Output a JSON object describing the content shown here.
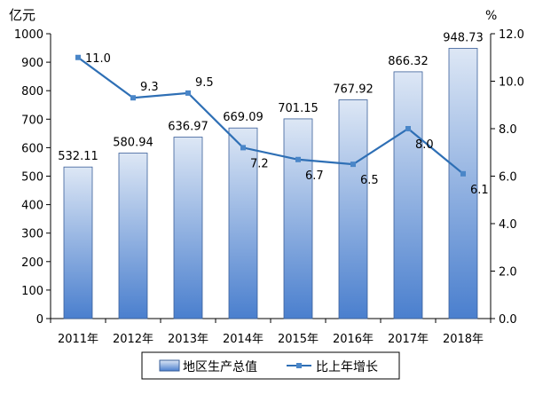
{
  "chart_data": {
    "type": "bar",
    "categories": [
      "2011年",
      "2012年",
      "2013年",
      "2014年",
      "2015年",
      "2016年",
      "2017年",
      "2018年"
    ],
    "series": [
      {
        "name": "地区生产总值",
        "type": "bar",
        "axis": "left",
        "values": [
          532.11,
          580.94,
          636.97,
          669.09,
          701.15,
          767.92,
          866.32,
          948.73
        ],
        "labels": [
          "532.11",
          "580.94",
          "636.97",
          "669.09",
          "701.15",
          "767.92",
          "866.32",
          "948.73"
        ]
      },
      {
        "name": "比上年增长",
        "type": "line",
        "axis": "right",
        "values": [
          11.0,
          9.3,
          9.5,
          7.2,
          6.7,
          6.5,
          8.0,
          6.1
        ],
        "labels": [
          "11.0",
          "9.3",
          "9.5",
          "7.2",
          "6.7",
          "6.5",
          "8.0",
          "6.1"
        ]
      }
    ],
    "y_left": {
      "unit": "亿元",
      "range": [
        0,
        1000
      ],
      "ticks": [
        "0",
        "100",
        "200",
        "300",
        "400",
        "500",
        "600",
        "700",
        "800",
        "900",
        "1000"
      ]
    },
    "y_right": {
      "unit": "%",
      "range": [
        0,
        12
      ],
      "ticks": [
        "0.0",
        "2.0",
        "4.0",
        "6.0",
        "8.0",
        "10.0",
        "12.0"
      ]
    },
    "grid": false,
    "legend_position": "bottom",
    "colors": {
      "bar_top": "#dde7f5",
      "bar_bottom": "#4a7fce",
      "bar_stroke": "#3a5f99",
      "line": "#2e6fb5",
      "marker": "#4a86c8"
    }
  }
}
